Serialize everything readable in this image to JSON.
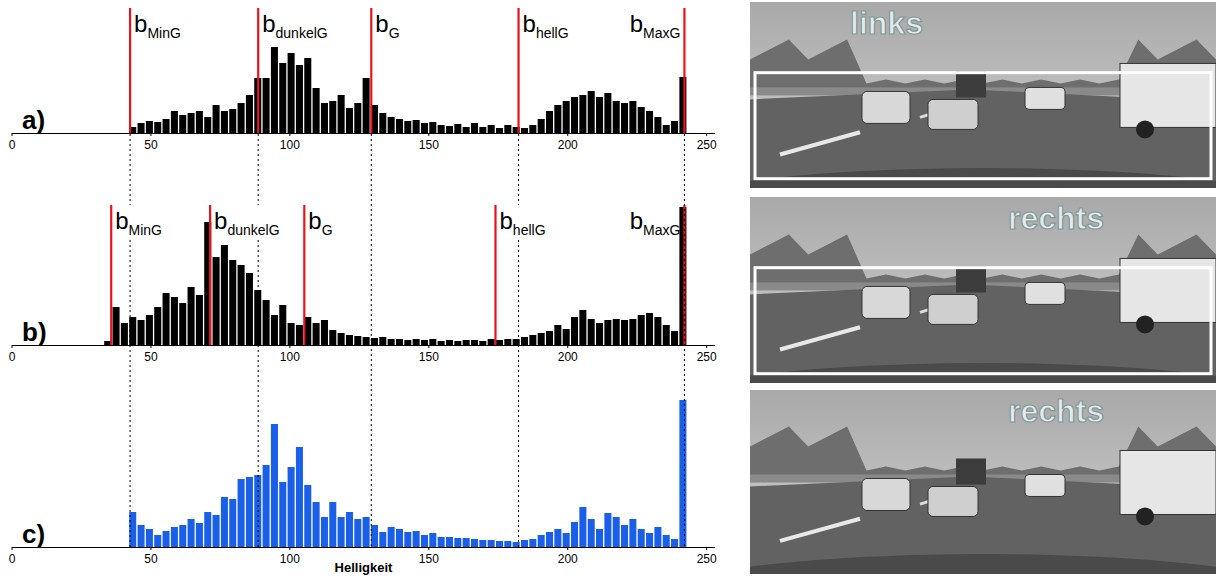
{
  "chart_data": [
    {
      "type": "histogram",
      "panel": "a)",
      "bins": [
        33,
        36,
        39,
        42,
        45,
        48,
        51,
        54,
        57,
        60,
        63,
        66,
        69,
        72,
        75,
        78,
        81,
        84,
        87,
        90,
        93,
        96,
        99,
        102,
        105,
        108,
        111,
        114,
        117,
        120,
        123,
        126,
        129,
        132,
        135,
        138,
        141,
        144,
        147,
        150,
        153,
        156,
        159,
        162,
        165,
        168,
        171,
        174,
        177,
        180,
        183,
        186,
        189,
        192,
        195,
        198,
        201,
        204,
        207,
        210,
        213,
        216,
        219,
        222,
        225,
        228,
        231,
        234,
        237,
        240,
        243
      ],
      "values": [
        0,
        0,
        0,
        6,
        10,
        12,
        11,
        14,
        22,
        18,
        20,
        22,
        16,
        28,
        22,
        24,
        30,
        38,
        55,
        55,
        86,
        70,
        80,
        68,
        75,
        45,
        30,
        32,
        38,
        25,
        30,
        55,
        28,
        20,
        16,
        14,
        12,
        13,
        10,
        11,
        8,
        7,
        9,
        6,
        10,
        6,
        8,
        5,
        8,
        6,
        5,
        8,
        14,
        22,
        28,
        32,
        36,
        38,
        42,
        36,
        40,
        32,
        30,
        32,
        26,
        22,
        16,
        8,
        12,
        56
      ],
      "color": "#000000",
      "xlim": [
        0,
        253
      ],
      "xticks": [
        0,
        50,
        100,
        150,
        200,
        250
      ],
      "ylim": [
        0,
        125
      ],
      "tick_labels": "x",
      "annotations": [
        {
          "value": 42.5,
          "label": "b",
          "subscript": "MinG"
        },
        {
          "value": 88.6,
          "label": "b",
          "subscript": "dunkelG"
        },
        {
          "value": 129.3,
          "label": "b",
          "subscript": "G"
        },
        {
          "value": 182.3,
          "label": "b",
          "subscript": "hellG"
        },
        {
          "value": 242,
          "label": "b",
          "subscript": "MaxG"
        }
      ]
    },
    {
      "type": "histogram",
      "panel": "b)",
      "bins": [
        33,
        36,
        39,
        42,
        45,
        48,
        51,
        54,
        57,
        60,
        63,
        66,
        69,
        72,
        75,
        78,
        81,
        84,
        87,
        90,
        93,
        96,
        99,
        102,
        105,
        108,
        111,
        114,
        117,
        120,
        123,
        126,
        129,
        132,
        135,
        138,
        141,
        144,
        147,
        150,
        153,
        156,
        159,
        162,
        165,
        168,
        171,
        174,
        177,
        180,
        183,
        186,
        189,
        192,
        195,
        198,
        201,
        204,
        207,
        210,
        213,
        216,
        219,
        222,
        225,
        228,
        231,
        234,
        237,
        240,
        243
      ],
      "values": [
        4,
        38,
        22,
        28,
        25,
        30,
        38,
        52,
        48,
        42,
        58,
        50,
        123,
        88,
        100,
        85,
        80,
        72,
        55,
        45,
        30,
        40,
        22,
        20,
        28,
        22,
        25,
        15,
        12,
        10,
        9,
        8,
        7,
        8,
        6,
        6,
        5,
        6,
        5,
        6,
        4,
        5,
        4,
        5,
        5,
        4,
        6,
        5,
        6,
        6,
        8,
        10,
        12,
        14,
        20,
        16,
        28,
        35,
        26,
        22,
        25,
        26,
        25,
        26,
        30,
        32,
        28,
        20,
        14,
        138
      ],
      "color": "#000000",
      "xlim": [
        0,
        253
      ],
      "xticks": [
        0,
        50,
        100,
        150,
        200,
        250
      ],
      "ylim": [
        0,
        140
      ],
      "tick_labels": "x",
      "annotations": [
        {
          "value": 35.7,
          "label": "b",
          "subscript": "MinG"
        },
        {
          "value": 71.3,
          "label": "b",
          "subscript": "dunkelG"
        },
        {
          "value": 105.2,
          "label": "b",
          "subscript": "G"
        },
        {
          "value": 174,
          "label": "b",
          "subscript": "hellG"
        },
        {
          "value": 242,
          "label": "b",
          "subscript": "MaxG"
        }
      ]
    },
    {
      "type": "histogram",
      "panel": "c)",
      "x_label": "Helligkeit",
      "bins": [
        33,
        36,
        39,
        42,
        45,
        48,
        51,
        54,
        57,
        60,
        63,
        66,
        69,
        72,
        75,
        78,
        81,
        84,
        87,
        90,
        93,
        96,
        99,
        102,
        105,
        108,
        111,
        114,
        117,
        120,
        123,
        126,
        129,
        132,
        135,
        138,
        141,
        144,
        147,
        150,
        153,
        156,
        159,
        162,
        165,
        168,
        171,
        174,
        177,
        180,
        183,
        186,
        189,
        192,
        195,
        198,
        201,
        204,
        207,
        210,
        213,
        216,
        219,
        222,
        225,
        228,
        231,
        234,
        237,
        240,
        243
      ],
      "values": [
        0,
        0,
        0,
        35,
        22,
        18,
        12,
        16,
        20,
        22,
        28,
        24,
        35,
        32,
        50,
        48,
        68,
        70,
        72,
        82,
        123,
        65,
        80,
        100,
        62,
        45,
        30,
        45,
        30,
        35,
        28,
        30,
        22,
        15,
        20,
        18,
        15,
        16,
        12,
        14,
        10,
        10,
        9,
        9,
        8,
        7,
        7,
        6,
        6,
        5,
        7,
        8,
        12,
        15,
        18,
        14,
        25,
        40,
        28,
        18,
        34,
        30,
        22,
        28,
        18,
        14,
        20,
        12,
        8,
        147
      ],
      "color": "#1a5fe8",
      "xlim": [
        0,
        253
      ],
      "xticks": [
        0,
        50,
        100,
        150,
        200,
        250
      ],
      "ylim": [
        0,
        150
      ],
      "tick_labels": "x"
    }
  ],
  "photos": [
    {
      "label": "links",
      "frame": true
    },
    {
      "label": "rechts",
      "frame": true
    },
    {
      "label": "rechts",
      "frame": false
    }
  ]
}
